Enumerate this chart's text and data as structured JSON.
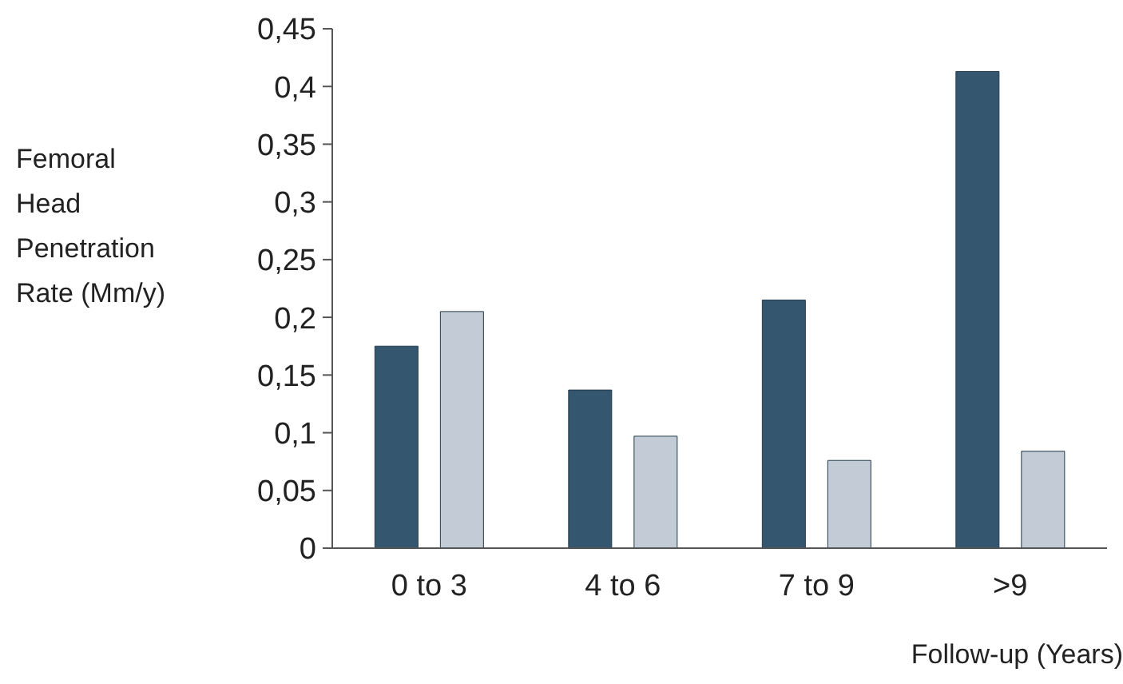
{
  "chart_data": {
    "type": "bar",
    "ylabel": "Femoral Head Penetration Rate (Mm/y)",
    "xlabel": "Follow-up (Years)",
    "categories": [
      "0 to 3",
      "4 to 6",
      "7 to 9",
      ">9"
    ],
    "series": [
      {
        "color": "#34576f",
        "values": [
          0.175,
          0.137,
          0.215,
          0.413
        ]
      },
      {
        "color": "#c3ccd6",
        "values": [
          0.205,
          0.097,
          0.076,
          0.084
        ]
      }
    ],
    "ylim": [
      0,
      0.45
    ],
    "yticks": [
      0,
      {
        "value": 0.05,
        "label": "0,05"
      },
      {
        "value": 0.1,
        "label": "0,1"
      },
      {
        "value": 0.15,
        "label": "0,15"
      },
      {
        "value": 0.2,
        "label": "0,2"
      },
      {
        "value": 0.25,
        "label": "0,25"
      },
      {
        "value": 0.3,
        "label": "0,3"
      },
      {
        "value": 0.35,
        "label": "0,35"
      },
      {
        "value": 0.4,
        "label": "0,4"
      },
      {
        "value": 0.45,
        "label": "0,45"
      }
    ],
    "grid": false,
    "legend": false
  }
}
